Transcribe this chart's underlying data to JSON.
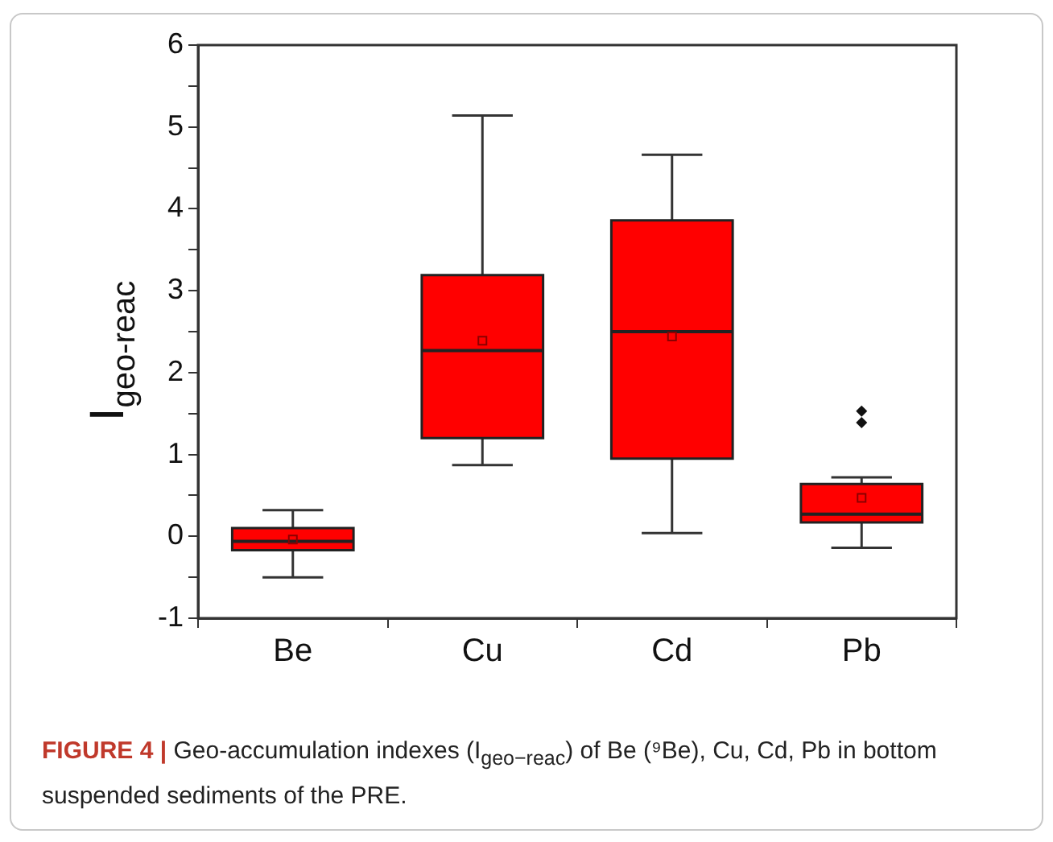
{
  "chart_data": {
    "type": "box",
    "ylabel": "I$_{geo-reac}$",
    "categories": [
      "Be",
      "Cu",
      "Cd",
      "Pb"
    ],
    "color": "#ff0000",
    "boxes": [
      {
        "low": -0.5,
        "q1": -0.17,
        "median": -0.06,
        "q3": 0.1,
        "high": 0.32,
        "mean": -0.04
      },
      {
        "low": 0.87,
        "q1": 1.2,
        "median": 2.27,
        "q3": 3.19,
        "high": 5.14,
        "mean": 2.39
      },
      {
        "low": 0.04,
        "q1": 0.95,
        "median": 2.5,
        "q3": 3.86,
        "high": 4.66,
        "mean": 2.44
      },
      {
        "low": -0.14,
        "q1": 0.17,
        "median": 0.27,
        "q3": 0.64,
        "high": 0.72,
        "mean": 0.47,
        "outliers": [
          1.39,
          1.53
        ]
      }
    ],
    "ylim": [
      -1,
      6
    ],
    "yticks": [
      -1,
      {
        "value": -0.5,
        "label": null
      },
      0,
      {
        "value": 0.5,
        "label": null
      },
      1,
      {
        "value": 1.5,
        "label": null
      },
      2,
      {
        "value": 2.5,
        "label": null
      },
      3,
      {
        "value": 3.5,
        "label": null
      },
      4,
      {
        "value": 4.5,
        "label": null
      },
      5,
      {
        "value": 5.5,
        "label": null
      },
      6
    ],
    "annotations": [
      "FIGURE 4 |",
      "Geo-accumulation indexes (I$_{geo−reac}$) of Be (⁹Be), Cu, Cd, Pb in bottom suspended sediments of the PRE."
    ]
  }
}
